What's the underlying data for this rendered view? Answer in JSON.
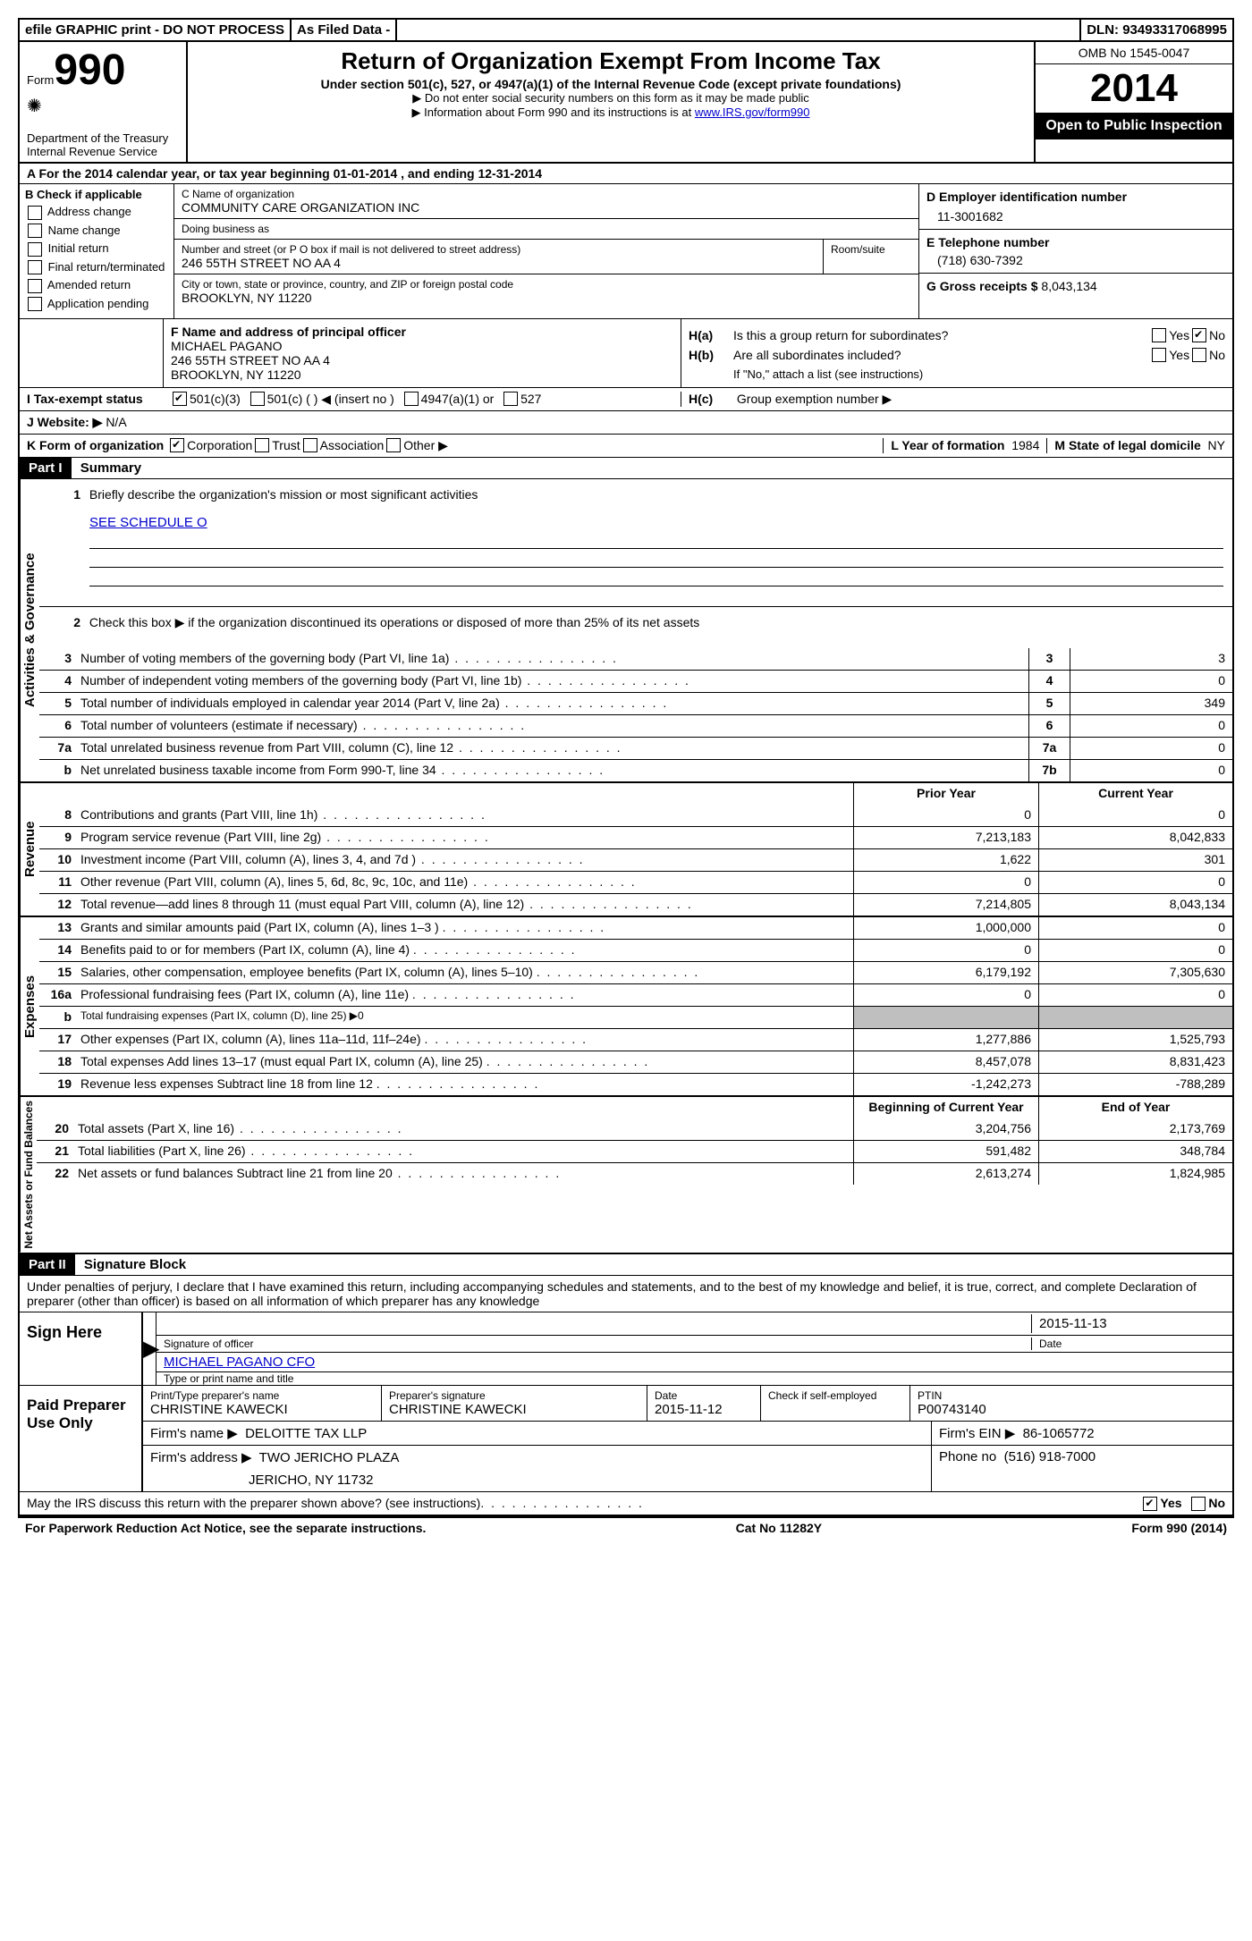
{
  "top": {
    "efile": "efile GRAPHIC print - DO NOT PROCESS",
    "asfiled": "As Filed Data -",
    "dln_label": "DLN:",
    "dln": "93493317068995"
  },
  "header": {
    "form_label": "Form",
    "form_num": "990",
    "dept": "Department of the Treasury",
    "irs": "Internal Revenue Service",
    "title": "Return of Organization Exempt From Income Tax",
    "subtitle": "Under section 501(c), 527, or 4947(a)(1) of the Internal Revenue Code (except private foundations)",
    "note1": "▶ Do not enter social security numbers on this form as it may be made public",
    "note2_pre": "▶ Information about Form 990 and its instructions is at ",
    "note2_link": "www.IRS.gov/form990",
    "omb": "OMB No 1545-0047",
    "year": "2014",
    "open": "Open to Public Inspection"
  },
  "section_a": {
    "text_pre": "A  For the 2014 calendar year, or tax year beginning ",
    "begin": "01-01-2014",
    "mid": "   , and ending ",
    "end": "12-31-2014"
  },
  "col_b": {
    "title": "B  Check if applicable",
    "items": [
      "Address change",
      "Name change",
      "Initial return",
      "Final return/terminated",
      "Amended return",
      "Application pending"
    ]
  },
  "col_c": {
    "name_label": "C Name of organization",
    "name": "COMMUNITY CARE ORGANIZATION INC",
    "dba_label": "Doing business as",
    "dba": "",
    "addr_label": "Number and street (or P O  box if mail is not delivered to street address)",
    "room_label": "Room/suite",
    "addr": "246 55TH STREET NO AA 4",
    "city_label": "City or town, state or province, country, and ZIP or foreign postal code",
    "city": "BROOKLYN, NY  11220"
  },
  "col_d": {
    "ein_label": "D Employer identification number",
    "ein": "11-3001682",
    "phone_label": "E Telephone number",
    "phone": "(718) 630-7392",
    "gross_label": "G Gross receipts $",
    "gross": "8,043,134"
  },
  "f_block": {
    "label": "F   Name and address of principal officer",
    "name": "MICHAEL PAGANO",
    "addr1": "246 55TH STREET NO AA 4",
    "addr2": "BROOKLYN, NY  11220"
  },
  "h_block": {
    "ha": "Is this a group return for subordinates?",
    "hb": "Are all subordinates included?",
    "hb_note": "If \"No,\" attach a list  (see instructions)",
    "hc": "Group exemption number ▶",
    "yes": "Yes",
    "no": "No"
  },
  "i_row": {
    "label": "I   Tax-exempt status",
    "opt1": "501(c)(3)",
    "opt2": "501(c) (   ) ◀ (insert no )",
    "opt3": "4947(a)(1) or",
    "opt4": "527"
  },
  "j_row": {
    "label": "J   Website: ▶",
    "val": "N/A"
  },
  "k_row": {
    "label": "K Form of organization",
    "opts": [
      "Corporation",
      "Trust",
      "Association",
      "Other ▶"
    ],
    "l_label": "L Year of formation",
    "l_val": "1984",
    "m_label": "M State of legal domicile",
    "m_val": "NY"
  },
  "part1": {
    "label": "Part I",
    "title": "Summary",
    "q1": "Briefly describe the organization's mission or most significant activities",
    "q1_ans": "SEE SCHEDULE O",
    "q2": "Check this box ▶     if the organization discontinued its operations or disposed of more than 25% of its net assets"
  },
  "governance": {
    "label": "Activities & Governance",
    "rows": [
      {
        "n": "3",
        "t": "Number of voting members of the governing body (Part VI, line 1a)",
        "b": "3",
        "v": "3"
      },
      {
        "n": "4",
        "t": "Number of independent voting members of the governing body (Part VI, line 1b)",
        "b": "4",
        "v": "0"
      },
      {
        "n": "5",
        "t": "Total number of individuals employed in calendar year 2014 (Part V, line 2a)",
        "b": "5",
        "v": "349"
      },
      {
        "n": "6",
        "t": "Total number of volunteers (estimate if necessary)",
        "b": "6",
        "v": "0"
      },
      {
        "n": "7a",
        "t": "Total unrelated business revenue from Part VIII, column (C), line 12",
        "b": "7a",
        "v": "0"
      },
      {
        "n": "b",
        "t": "Net unrelated business taxable income from Form 990-T, line 34",
        "b": "7b",
        "v": "0"
      }
    ]
  },
  "revenue": {
    "label": "Revenue",
    "header_prior": "Prior Year",
    "header_current": "Current Year",
    "rows": [
      {
        "n": "8",
        "t": "Contributions and grants (Part VIII, line 1h)",
        "p": "0",
        "c": "0"
      },
      {
        "n": "9",
        "t": "Program service revenue (Part VIII, line 2g)",
        "p": "7,213,183",
        "c": "8,042,833"
      },
      {
        "n": "10",
        "t": "Investment income (Part VIII, column (A), lines 3, 4, and 7d )",
        "p": "1,622",
        "c": "301"
      },
      {
        "n": "11",
        "t": "Other revenue (Part VIII, column (A), lines 5, 6d, 8c, 9c, 10c, and 11e)",
        "p": "0",
        "c": "0"
      },
      {
        "n": "12",
        "t": "Total revenue—add lines 8 through 11 (must equal Part VIII, column (A), line 12)",
        "p": "7,214,805",
        "c": "8,043,134"
      }
    ]
  },
  "expenses": {
    "label": "Expenses",
    "rows": [
      {
        "n": "13",
        "t": "Grants and similar amounts paid (Part IX, column (A), lines 1–3 )",
        "p": "1,000,000",
        "c": "0"
      },
      {
        "n": "14",
        "t": "Benefits paid to or for members (Part IX, column (A), line 4)",
        "p": "0",
        "c": "0"
      },
      {
        "n": "15",
        "t": "Salaries, other compensation, employee benefits (Part IX, column (A), lines 5–10)",
        "p": "6,179,192",
        "c": "7,305,630"
      },
      {
        "n": "16a",
        "t": "Professional fundraising fees (Part IX, column (A), line 11e)",
        "p": "0",
        "c": "0"
      },
      {
        "n": "b",
        "t": "Total fundraising expenses (Part IX, column (D), line 25) ▶0",
        "p": "",
        "c": "",
        "gray": true,
        "small": true
      },
      {
        "n": "17",
        "t": "Other expenses (Part IX, column (A), lines 11a–11d, 11f–24e)",
        "p": "1,277,886",
        "c": "1,525,793"
      },
      {
        "n": "18",
        "t": "Total expenses  Add lines 13–17 (must equal Part IX, column (A), line 25)",
        "p": "8,457,078",
        "c": "8,831,423"
      },
      {
        "n": "19",
        "t": "Revenue less expenses  Subtract line 18 from line 12",
        "p": "-1,242,273",
        "c": "-788,289"
      }
    ]
  },
  "netassets": {
    "label": "Net Assets or Fund Balances",
    "header_prior": "Beginning of Current Year",
    "header_current": "End of Year",
    "rows": [
      {
        "n": "20",
        "t": "Total assets (Part X, line 16)",
        "p": "3,204,756",
        "c": "2,173,769"
      },
      {
        "n": "21",
        "t": "Total liabilities (Part X, line 26)",
        "p": "591,482",
        "c": "348,784"
      },
      {
        "n": "22",
        "t": "Net assets or fund balances  Subtract line 21 from line 20",
        "p": "2,613,274",
        "c": "1,824,985"
      }
    ]
  },
  "part2": {
    "label": "Part II",
    "title": "Signature Block",
    "perjury": "Under penalties of perjury, I declare that I have examined this return, including accompanying schedules and statements, and to the best of my knowledge and belief, it is true, correct, and complete  Declaration of preparer (other than officer) is based on all information of which preparer has any knowledge"
  },
  "sign": {
    "left": "Sign Here",
    "sig_label": "Signature of officer",
    "date_label": "Date",
    "date": "2015-11-13",
    "name": "MICHAEL PAGANO CFO",
    "name_label": "Type or print name and title"
  },
  "paid": {
    "left": "Paid Preparer Use Only",
    "prep_name_label": "Print/Type preparer's name",
    "prep_name": "CHRISTINE KAWECKI",
    "prep_sig_label": "Preparer's signature",
    "prep_sig": "CHRISTINE KAWECKI",
    "date_label": "Date",
    "date": "2015-11-12",
    "check_label": "Check      if self-employed",
    "ptin_label": "PTIN",
    "ptin": "P00743140",
    "firm_name_label": "Firm's name    ▶",
    "firm_name": "DELOITTE TAX LLP",
    "firm_ein_label": "Firm's EIN ▶",
    "firm_ein": "86-1065772",
    "firm_addr_label": "Firm's address ▶",
    "firm_addr1": "TWO JERICHO PLAZA",
    "firm_addr2": "JERICHO, NY  11732",
    "phone_label": "Phone no",
    "phone": "(516) 918-7000"
  },
  "discuss": {
    "text": "May the IRS discuss this return with the preparer shown above? (see instructions)",
    "yes": "Yes",
    "no": "No"
  },
  "footer": {
    "left": "For Paperwork Reduction Act Notice, see the separate instructions.",
    "mid": "Cat No 11282Y",
    "right": "Form 990 (2014)"
  }
}
